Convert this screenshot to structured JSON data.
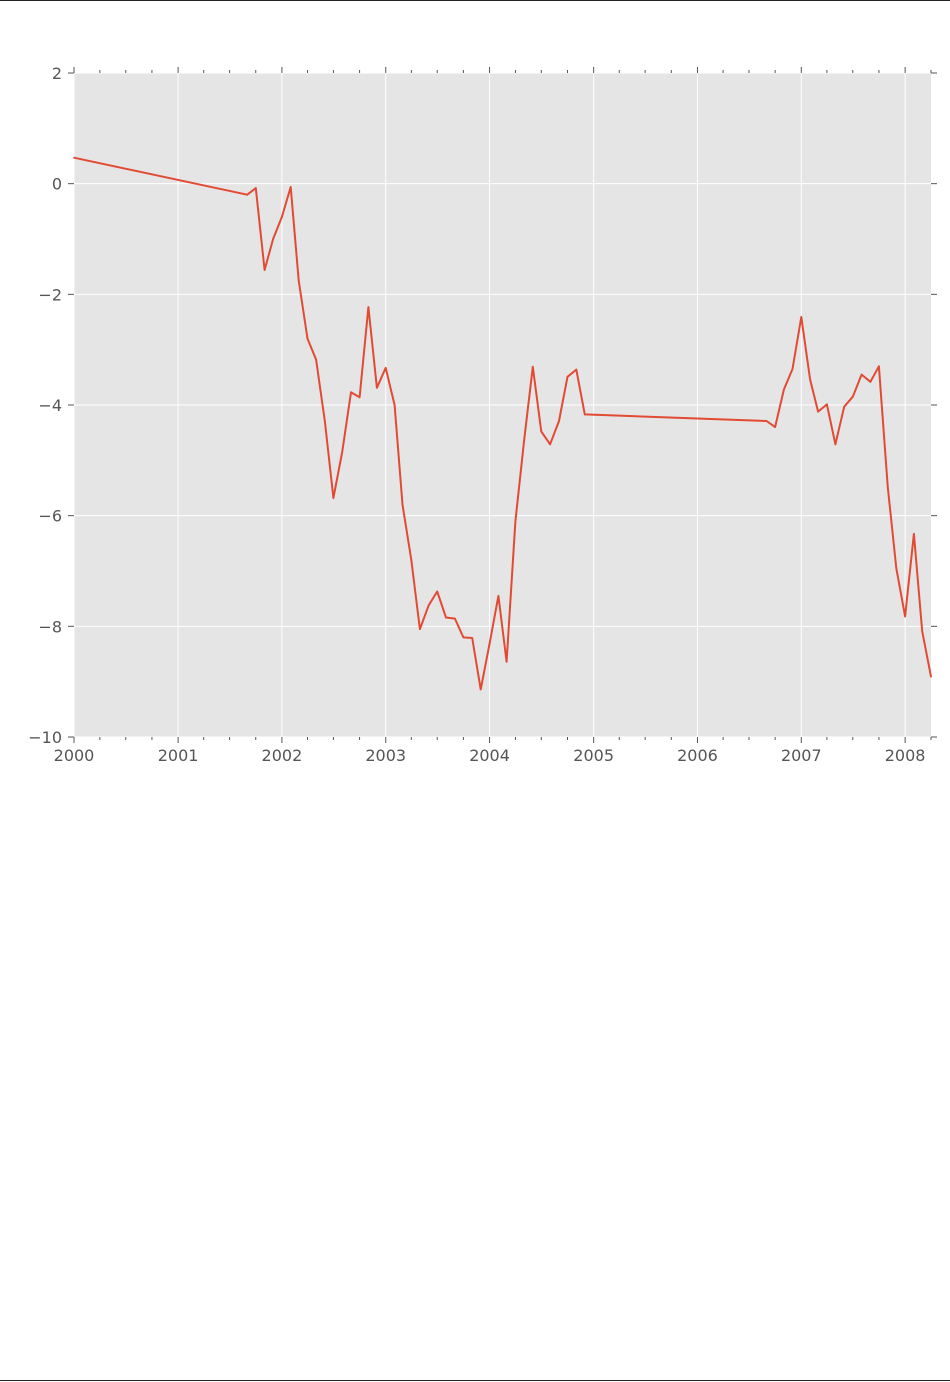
{
  "chart_data": {
    "type": "line",
    "title": "",
    "xlabel": "",
    "ylabel": "",
    "xlim": [
      "2000-01-01",
      "2008-04-01"
    ],
    "ylim": [
      -10,
      2
    ],
    "grid": true,
    "x_tick_labels": [
      "2000",
      "2001",
      "2002",
      "2003",
      "2004",
      "2005",
      "2006",
      "2007",
      "2008"
    ],
    "y_tick_labels": [
      2,
      0,
      -2,
      -4,
      -6,
      -8,
      -10
    ],
    "colors": {
      "line": "#e24a33",
      "plot_background": "#e5e5e5",
      "grid": "#ffffff",
      "text": "#555555"
    },
    "series": [
      {
        "x": [
          "2000-01-01",
          "2001-09-01",
          "2001-10-01",
          "2001-11-01",
          "2001-12-01",
          "2002-01-01",
          "2002-02-01",
          "2002-03-01",
          "2002-04-01",
          "2002-05-01",
          "2002-06-01",
          "2002-07-01",
          "2002-08-01",
          "2002-09-01",
          "2002-10-01",
          "2002-11-01",
          "2002-12-01",
          "2003-01-01",
          "2003-02-01",
          "2003-03-01",
          "2003-04-01",
          "2003-05-01",
          "2003-06-01",
          "2003-07-01",
          "2003-08-01",
          "2003-09-01",
          "2003-10-01",
          "2003-11-01",
          "2003-12-01",
          "2004-01-01",
          "2004-02-01",
          "2004-03-01",
          "2004-04-01",
          "2004-05-01",
          "2004-06-01",
          "2004-07-01",
          "2004-08-01",
          "2004-09-01",
          "2004-10-01",
          "2004-11-01",
          "2004-12-01",
          "2006-09-01",
          "2006-10-01",
          "2006-11-01",
          "2006-12-01",
          "2007-01-01",
          "2007-02-01",
          "2007-03-01",
          "2007-04-01",
          "2007-05-01",
          "2007-06-01",
          "2007-07-01",
          "2007-08-01",
          "2007-09-01",
          "2007-10-01",
          "2007-11-01",
          "2007-12-01",
          "2008-01-01",
          "2008-02-01",
          "2008-03-01",
          "2008-04-01"
        ],
        "values": [
          0.47,
          -0.2,
          -0.08,
          -1.56,
          -1.0,
          -0.6,
          -0.06,
          -1.75,
          -2.8,
          -3.18,
          -4.3,
          -5.68,
          -4.85,
          -3.77,
          -3.86,
          -2.23,
          -3.69,
          -3.33,
          -4.0,
          -5.8,
          -6.8,
          -8.05,
          -7.62,
          -7.37,
          -7.84,
          -7.86,
          -8.2,
          -8.21,
          -9.14,
          -8.31,
          -7.45,
          -8.64,
          -6.1,
          -4.66,
          -3.31,
          -4.48,
          -4.71,
          -4.29,
          -3.49,
          -3.36,
          -4.17,
          -4.29,
          -4.4,
          -3.72,
          -3.35,
          -2.41,
          -3.54,
          -4.12,
          -3.99,
          -4.71,
          -4.03,
          -3.85,
          -3.45,
          -3.58,
          -3.3,
          -5.49,
          -6.95,
          -7.82,
          -6.33,
          -8.09,
          -8.91
        ]
      }
    ]
  }
}
